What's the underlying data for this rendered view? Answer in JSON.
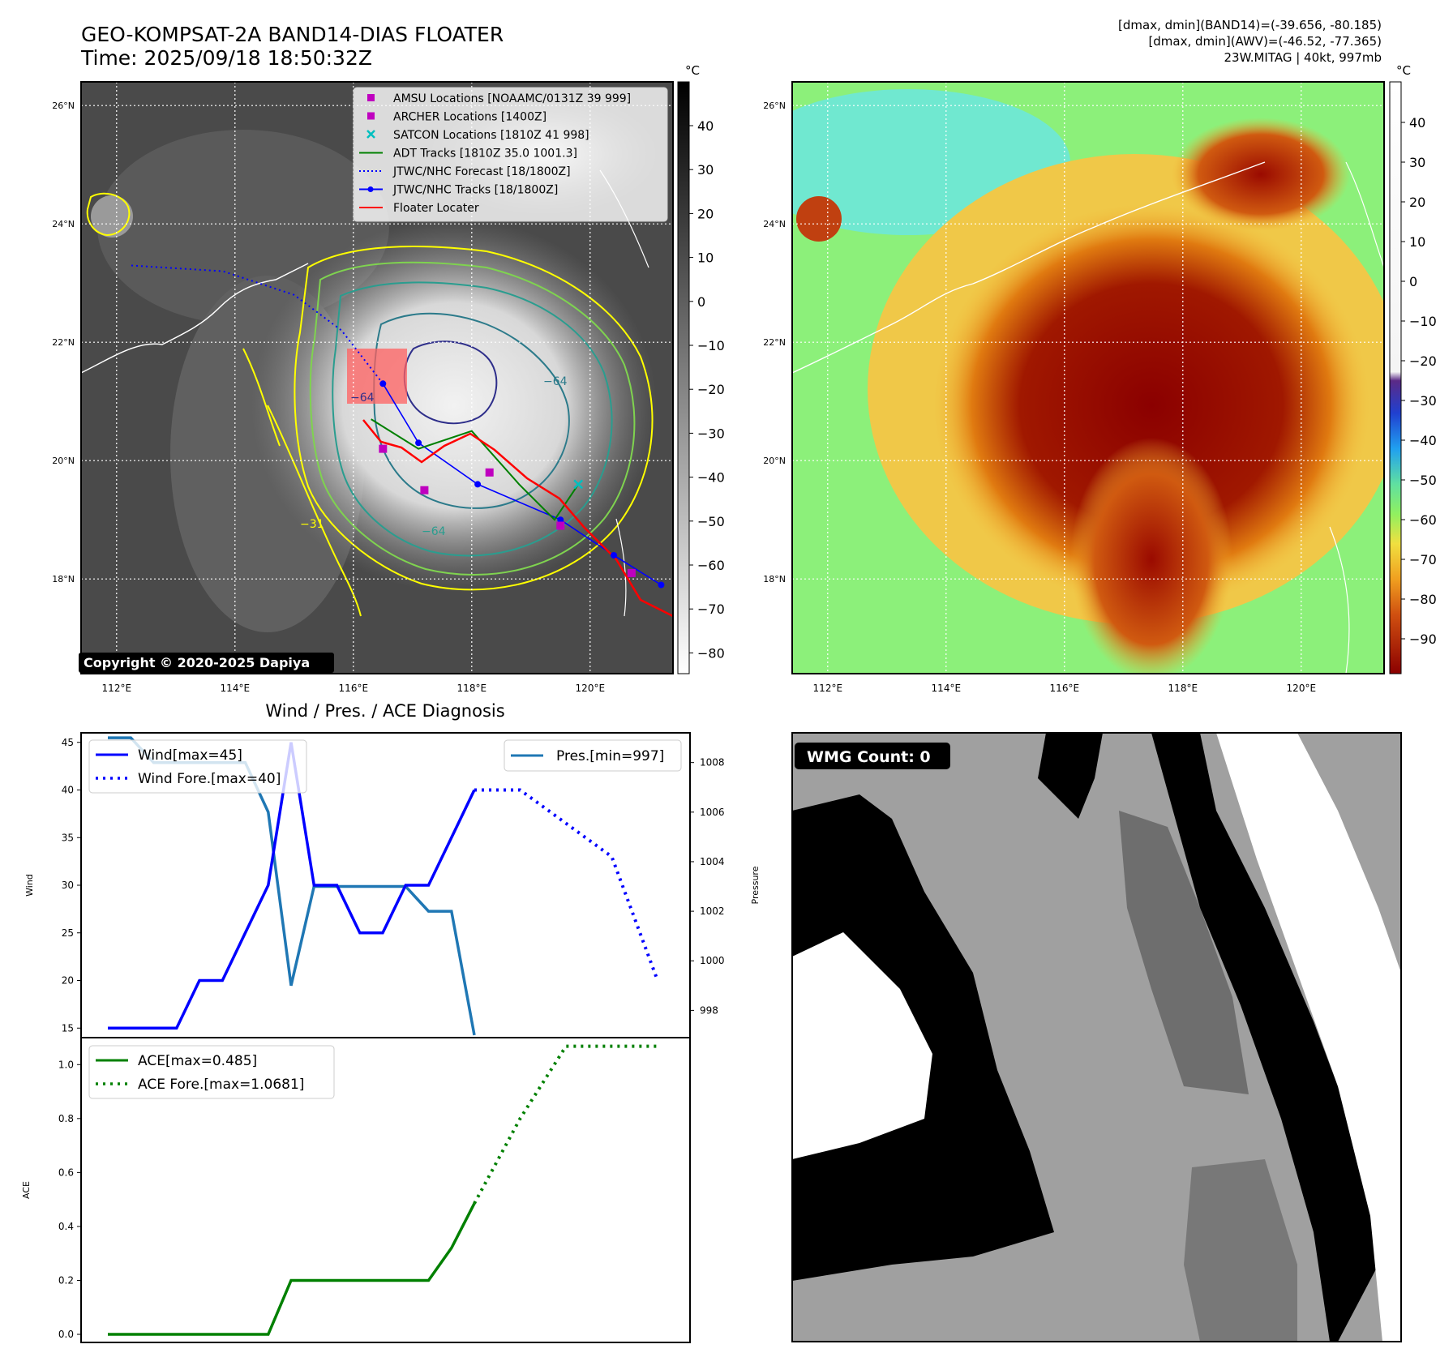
{
  "header": {
    "title_line1": "GEO-KOMPSAT-2A BAND14-DIAS FLOATER",
    "title_line2": "Time: 2025/09/18 18:50:32Z",
    "info_line1": "[dmax, dmin](BAND14)=(-39.656, -80.185)",
    "info_line2": "[dmax, dmin](AWV)=(-46.52, -77.365)",
    "info_line3": "23W.MITAG | 40kt, 997mb"
  },
  "map_ir": {
    "lon_ticks": [
      "112°E",
      "114°E",
      "116°E",
      "118°E",
      "120°E"
    ],
    "lat_ticks": [
      "26°N",
      "24°N",
      "22°N",
      "20°N",
      "18°N"
    ],
    "colorbar_unit": "°C",
    "colorbar_ticks": [
      "40",
      "30",
      "20",
      "10",
      "0",
      "−10",
      "−20",
      "−30",
      "−40",
      "−50",
      "−60",
      "−70",
      "−80"
    ],
    "copyright": "Copyright © 2020-2025 Dapiya",
    "contour_labels": [
      "−64",
      "−64",
      "−31",
      "−64"
    ],
    "legend": [
      {
        "label": "AMSU Locations [NOAAMC/0131Z 39 999]",
        "color": "#bf00bf",
        "kind": "square"
      },
      {
        "label": "ARCHER Locations [1400Z]",
        "color": "#bf00bf",
        "kind": "square"
      },
      {
        "label": "SATCON Locations [1810Z 41 998]",
        "color": "#00bfbf",
        "kind": "x"
      },
      {
        "label": "ADT Tracks [1810Z 35.0 1001.3]",
        "color": "#008000",
        "kind": "line"
      },
      {
        "label": "JTWC/NHC Forecast [18/1800Z]",
        "color": "#0000ff",
        "kind": "dotted"
      },
      {
        "label": "JTWC/NHC Tracks [18/1800Z]",
        "color": "#0000ff",
        "kind": "line-dot"
      },
      {
        "label": "Floater Locater",
        "color": "#ff0000",
        "kind": "line"
      }
    ],
    "jtwc_track": [
      [
        121.2,
        17.9
      ],
      [
        120.4,
        18.4
      ],
      [
        119.5,
        19.0
      ],
      [
        118.1,
        19.6
      ],
      [
        117.1,
        20.3
      ],
      [
        116.5,
        21.3
      ]
    ],
    "jtwc_forecast": [
      [
        116.5,
        21.3
      ],
      [
        115.8,
        22.2
      ],
      [
        115.0,
        22.8
      ],
      [
        113.8,
        23.2
      ],
      [
        112.2,
        23.3
      ]
    ],
    "adt_track": [
      [
        119.8,
        19.6
      ],
      [
        119.4,
        19.0
      ],
      [
        118.8,
        19.6
      ],
      [
        118.0,
        20.5
      ],
      [
        117.1,
        20.2
      ],
      [
        116.3,
        20.7
      ]
    ],
    "amsu_points": [
      [
        116.5,
        20.2
      ],
      [
        118.3,
        19.8
      ],
      [
        120.7,
        18.1
      ]
    ],
    "archer_points": [
      [
        117.2,
        19.5
      ],
      [
        119.5,
        18.9
      ]
    ],
    "satcon_points": [
      [
        119.8,
        19.6
      ]
    ]
  },
  "map_awv": {
    "lon_ticks": [
      "112°E",
      "114°E",
      "116°E",
      "118°E",
      "120°E"
    ],
    "lat_ticks": [
      "26°N",
      "24°N",
      "22°N",
      "20°N",
      "18°N"
    ],
    "colorbar_unit": "°C",
    "colorbar_ticks": [
      "40",
      "30",
      "20",
      "10",
      "0",
      "−10",
      "−20",
      "−30",
      "−40",
      "−50",
      "−60",
      "−70",
      "−80",
      "−90"
    ]
  },
  "diagnosis": {
    "title": "Wind / Pres. / ACE Diagnosis",
    "wind_ylabel": "Wind",
    "pres_ylabel": "Pressure",
    "ace_ylabel": "ACE",
    "legend_wind": "Wind[max=45]",
    "legend_wind_fore": "Wind Fore.[max=40]",
    "legend_pres": "Pres.[min=997]",
    "legend_ace": "ACE[max=0.485]",
    "legend_ace_fore": "ACE Fore.[max=1.0681]"
  },
  "wmg": {
    "label": "WMG Count: 0"
  },
  "chart_data": [
    {
      "type": "line",
      "title": "Wind / Pres. / ACE Diagnosis",
      "ylabel": "Wind",
      "ylim": [
        14,
        46
      ],
      "yticks": [
        15,
        20,
        25,
        30,
        35,
        40,
        45
      ],
      "series": [
        {
          "name": "Wind[max=45]",
          "color": "#0000ff",
          "style": "solid",
          "x": [
            0,
            1,
            2,
            3,
            4,
            5,
            6,
            7,
            8,
            9,
            10,
            11,
            12,
            13,
            14,
            15,
            16
          ],
          "values": [
            15,
            15,
            15,
            15,
            20,
            20,
            25,
            30,
            45,
            30,
            30,
            25,
            25,
            30,
            30,
            35,
            40
          ]
        },
        {
          "name": "Wind Fore.[max=40]",
          "color": "#0000ff",
          "style": "dotted",
          "x": [
            16,
            18,
            22,
            24
          ],
          "values": [
            40,
            40,
            33,
            20
          ]
        }
      ]
    },
    {
      "type": "line",
      "ylabel": "Pressure",
      "ylim": [
        996.9,
        1009.2
      ],
      "yticks": [
        998,
        1000,
        1002,
        1004,
        1006,
        1008
      ],
      "series": [
        {
          "name": "Pres.[min=997]",
          "color": "#1f77b4",
          "style": "solid",
          "x": [
            0,
            1,
            2,
            3,
            4,
            5,
            6,
            7,
            8,
            9,
            10,
            11,
            12,
            13,
            14,
            15,
            16
          ],
          "values": [
            1009,
            1009,
            1008,
            1008,
            1008,
            1008,
            1008,
            1006,
            999,
            1003,
            1003,
            1003,
            1003,
            1003,
            1002,
            1002,
            997
          ]
        }
      ]
    },
    {
      "type": "line",
      "ylabel": "ACE",
      "ylim": [
        -0.03,
        1.1
      ],
      "yticks": [
        0.0,
        0.2,
        0.4,
        0.6,
        0.8,
        1.0
      ],
      "series": [
        {
          "name": "ACE[max=0.485]",
          "color": "#008000",
          "style": "solid",
          "x": [
            0,
            7,
            8,
            9,
            10,
            11,
            12,
            13,
            14,
            15,
            16
          ],
          "values": [
            0,
            0,
            0.2,
            0.2,
            0.2,
            0.2,
            0.2,
            0.2,
            0.2,
            0.32,
            0.485
          ]
        },
        {
          "name": "ACE Fore.[max=1.0681]",
          "color": "#008000",
          "style": "dotted",
          "x": [
            16,
            18,
            20,
            24
          ],
          "values": [
            0.485,
            0.8,
            1.068,
            1.068
          ]
        }
      ]
    }
  ]
}
